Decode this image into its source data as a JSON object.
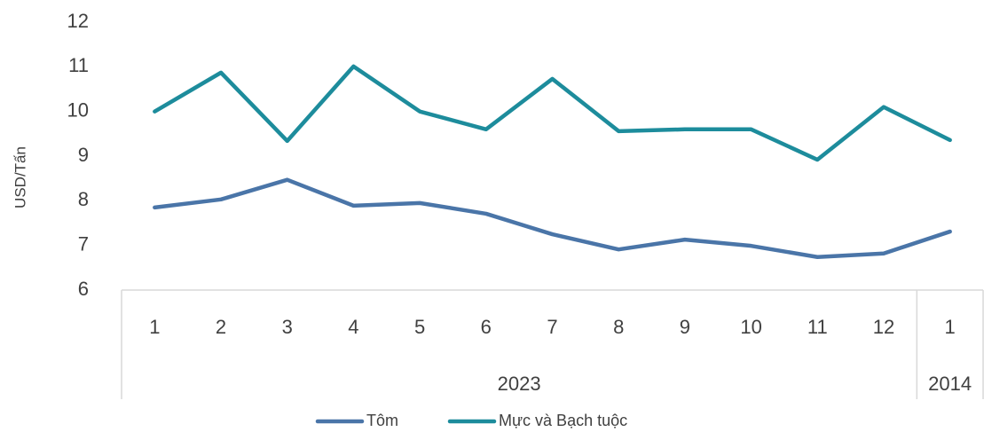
{
  "chart_data": {
    "type": "line",
    "y_label": "USD/Tấn",
    "categories": [
      "1",
      "2",
      "3",
      "4",
      "5",
      "6",
      "7",
      "8",
      "9",
      "10",
      "11",
      "12",
      "1"
    ],
    "groups": [
      {
        "name": "2023",
        "size": 12
      },
      {
        "name": "2014",
        "size": 1
      }
    ],
    "series": [
      {
        "name": "Tôm",
        "color": "#4a75a8",
        "values": [
          7.85,
          8.03,
          8.47,
          7.89,
          7.95,
          7.71,
          7.25,
          6.91,
          7.13,
          6.99,
          6.74,
          6.82,
          7.31
        ]
      },
      {
        "name": "Mực và Bạch tuộc",
        "color": "#1d8c9c",
        "values": [
          10.0,
          10.87,
          9.34,
          11.01,
          10.0,
          9.6,
          10.73,
          9.56,
          9.6,
          9.6,
          8.92,
          10.1,
          9.36
        ]
      }
    ],
    "ylim": [
      6,
      12
    ],
    "yticks": [
      6,
      7,
      8,
      9,
      10,
      11,
      12
    ],
    "grid": false,
    "legend": "bottom"
  }
}
